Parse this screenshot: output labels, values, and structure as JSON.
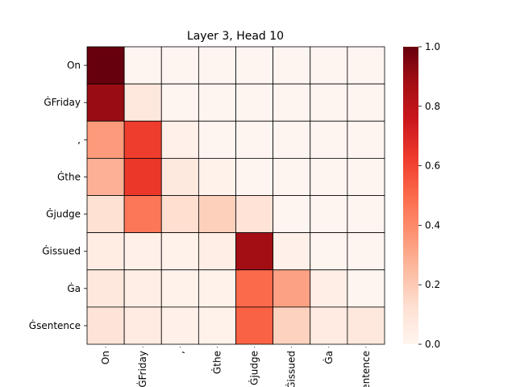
{
  "chart_data": {
    "type": "heatmap",
    "title": "Layer 3, Head 10",
    "xlabel": "",
    "ylabel": "",
    "row_labels": [
      "On",
      "ĠFriday",
      ",",
      "Ġthe",
      "Ġjudge",
      "Ġissued",
      "Ġa",
      "Ġsentence"
    ],
    "col_labels": [
      "On",
      "ĠFriday",
      ",",
      "Ġthe",
      "Ġjudge",
      "Ġissued",
      "Ġa",
      "Ġsentence"
    ],
    "values": [
      [
        1.0,
        0,
        0,
        0,
        0,
        0,
        0,
        0
      ],
      [
        0.9,
        0.08,
        0,
        0,
        0,
        0,
        0,
        0
      ],
      [
        0.35,
        0.62,
        0.03,
        0,
        0,
        0,
        0,
        0
      ],
      [
        0.28,
        0.64,
        0.07,
        0.02,
        0,
        0,
        0,
        0
      ],
      [
        0.12,
        0.46,
        0.13,
        0.18,
        0.11,
        0,
        0,
        0
      ],
      [
        0.05,
        0.03,
        0.02,
        0.04,
        0.88,
        0.03,
        0,
        0
      ],
      [
        0.08,
        0.04,
        0.02,
        0.02,
        0.5,
        0.33,
        0.04,
        0
      ],
      [
        0.1,
        0.06,
        0.03,
        0.02,
        0.52,
        0.17,
        0.06,
        0.08
      ]
    ],
    "colorbar": {
      "min": 0.0,
      "max": 1.0,
      "ticks": [
        "0.0",
        "0.2",
        "0.4",
        "0.6",
        "0.8",
        "1.0"
      ]
    },
    "colormap": "Reds",
    "grid": true
  }
}
